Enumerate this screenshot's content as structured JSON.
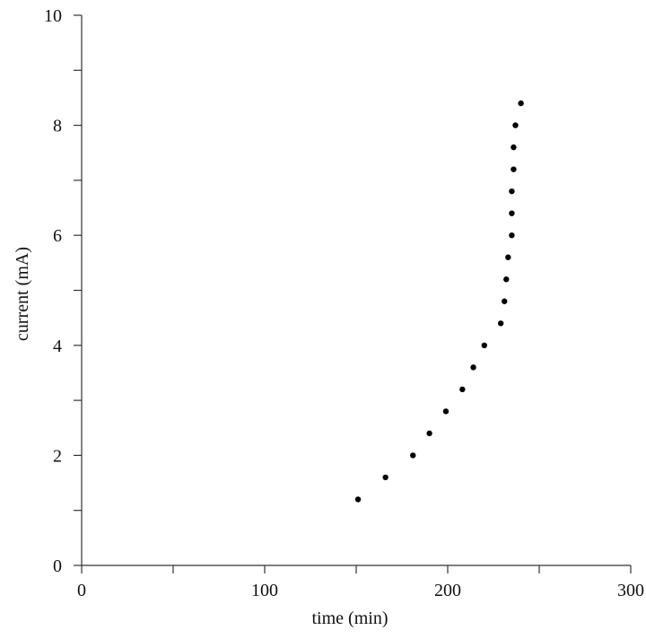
{
  "chart_data": {
    "type": "scatter",
    "title": "",
    "xlabel": "time (min)",
    "ylabel": "current (mA)",
    "xlim": [
      0,
      300
    ],
    "ylim": [
      0,
      10
    ],
    "x_ticks": [
      0,
      50,
      100,
      150,
      200,
      250,
      300
    ],
    "x_tick_labels": [
      "0",
      "",
      "100",
      "",
      "200",
      "",
      "300"
    ],
    "y_ticks": [
      0,
      1,
      2,
      3,
      4,
      5,
      6,
      7,
      8,
      9,
      10
    ],
    "y_tick_labels": [
      "0",
      "",
      "2",
      "",
      "4",
      "",
      "6",
      "",
      "8",
      "",
      "10"
    ],
    "grid": false,
    "point_color": "#000000",
    "series": [
      {
        "points": [
          {
            "x": 151,
            "y": 1.2
          },
          {
            "x": 166,
            "y": 1.6
          },
          {
            "x": 181,
            "y": 2.0
          },
          {
            "x": 190,
            "y": 2.4
          },
          {
            "x": 199,
            "y": 2.8
          },
          {
            "x": 208,
            "y": 3.2
          },
          {
            "x": 214,
            "y": 3.6
          },
          {
            "x": 220,
            "y": 4.0
          },
          {
            "x": 229,
            "y": 4.4
          },
          {
            "x": 231,
            "y": 4.8
          },
          {
            "x": 232,
            "y": 5.2
          },
          {
            "x": 233,
            "y": 5.6
          },
          {
            "x": 235,
            "y": 6.0
          },
          {
            "x": 235,
            "y": 6.4
          },
          {
            "x": 235,
            "y": 6.8
          },
          {
            "x": 236,
            "y": 7.2
          },
          {
            "x": 236,
            "y": 7.6
          },
          {
            "x": 237,
            "y": 8.0
          },
          {
            "x": 240,
            "y": 8.4
          }
        ]
      }
    ]
  }
}
